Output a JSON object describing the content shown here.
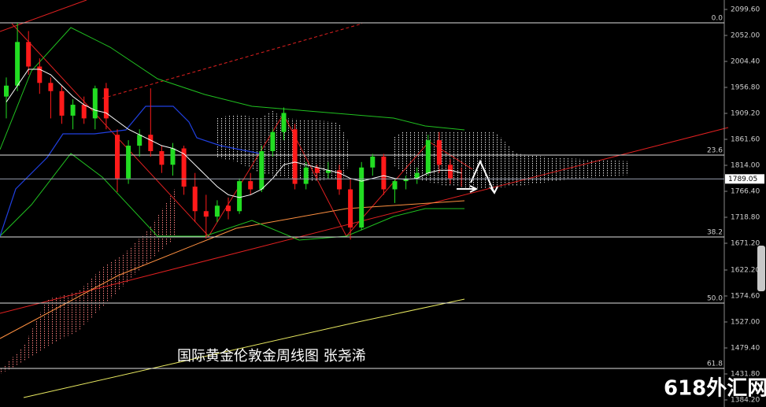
{
  "chart_data": {
    "type": "candlestick",
    "title": "国际黄金伦敦金周线图  张尧浠",
    "watermark": "618外汇网",
    "ylim": [
      1371.2,
      2116.9
    ],
    "yticks": [
      {
        "value": 2099.6,
        "label": "2099.60"
      },
      {
        "value": 2052.0,
        "label": "2052.00"
      },
      {
        "value": 2004.4,
        "label": "2004.40"
      },
      {
        "value": 1956.8,
        "label": "1956.80"
      },
      {
        "value": 1909.2,
        "label": "1909.20"
      },
      {
        "value": 1861.6,
        "label": "1861.60"
      },
      {
        "value": 1814.0,
        "label": "1814.00"
      },
      {
        "value": 1766.4,
        "label": "1766.40"
      },
      {
        "value": 1718.8,
        "label": "1718.80"
      },
      {
        "value": 1671.2,
        "label": "1671.20"
      },
      {
        "value": 1622.2,
        "label": "1622.20"
      },
      {
        "value": 1574.6,
        "label": "1574.60"
      },
      {
        "value": 1527.0,
        "label": "1527.00"
      },
      {
        "value": 1479.4,
        "label": "1479.40"
      },
      {
        "value": 1431.8,
        "label": "1431.80"
      },
      {
        "value": 1384.2,
        "label": "1384.20"
      }
    ],
    "up_color": "#22dd22",
    "down_color": "#ff1a1a",
    "open": [
      1940,
      1960,
      2040,
      1995,
      1965,
      1950,
      1905,
      1925,
      1900,
      1955,
      1870,
      1790,
      1850,
      1870,
      1840,
      1815,
      1845,
      1775,
      1730,
      1720,
      1740,
      1730,
      1785,
      1770,
      1840,
      1875,
      1880,
      1780,
      1810,
      1800,
      1805,
      1770,
      1700,
      1810,
      1830,
      1770,
      1785,
      1790,
      1800,
      1860,
      1815,
      1790
    ],
    "high": [
      1975,
      2075,
      2060,
      2010,
      1975,
      1960,
      1935,
      1940,
      1960,
      1965,
      1880,
      1860,
      1880,
      1955,
      1850,
      1855,
      1850,
      1800,
      1760,
      1750,
      1755,
      1790,
      1800,
      1850,
      1880,
      1920,
      1890,
      1820,
      1815,
      1820,
      1815,
      1790,
      1820,
      1835,
      1835,
      1790,
      1795,
      1810,
      1870,
      1875,
      1825,
      1810
    ],
    "low": [
      1900,
      1950,
      1980,
      1945,
      1900,
      1890,
      1880,
      1890,
      1880,
      1880,
      1765,
      1780,
      1830,
      1830,
      1800,
      1795,
      1760,
      1710,
      1680,
      1710,
      1715,
      1725,
      1760,
      1765,
      1830,
      1860,
      1770,
      1770,
      1790,
      1790,
      1760,
      1678,
      1695,
      1795,
      1760,
      1745,
      1770,
      1780,
      1795,
      1800,
      1780,
      1775
    ],
    "close": [
      1960,
      2040,
      1995,
      1965,
      1950,
      1905,
      1925,
      1900,
      1955,
      1900,
      1790,
      1850,
      1870,
      1840,
      1815,
      1845,
      1775,
      1730,
      1720,
      1740,
      1730,
      1785,
      1770,
      1840,
      1875,
      1910,
      1780,
      1810,
      1800,
      1805,
      1770,
      1700,
      1810,
      1830,
      1770,
      1785,
      1790,
      1800,
      1860,
      1815,
      1790,
      1789
    ],
    "ma": {
      "color": "#ffffff",
      "values": [
        1930,
        1960,
        1990,
        1990,
        1980,
        1960,
        1940,
        1925,
        1915,
        1910,
        1895,
        1880,
        1870,
        1860,
        1850,
        1845,
        1835,
        1815,
        1795,
        1775,
        1760,
        1755,
        1760,
        1770,
        1790,
        1815,
        1820,
        1815,
        1810,
        1805,
        1800,
        1790,
        1785,
        1790,
        1795,
        1790,
        1788,
        1790,
        1800,
        1805,
        1805,
        1800
      ]
    },
    "levels": [
      {
        "value": 2075.1,
        "label": "0.0"
      },
      {
        "value": 1832.8,
        "label": "23.6"
      },
      {
        "value": 1682.7,
        "label": "38.2"
      },
      {
        "value": 1561.6,
        "label": "50.0"
      },
      {
        "value": 1441.9,
        "label": "61.8"
      }
    ],
    "last_price": {
      "value": 1789.05,
      "label": "1789.05"
    }
  }
}
